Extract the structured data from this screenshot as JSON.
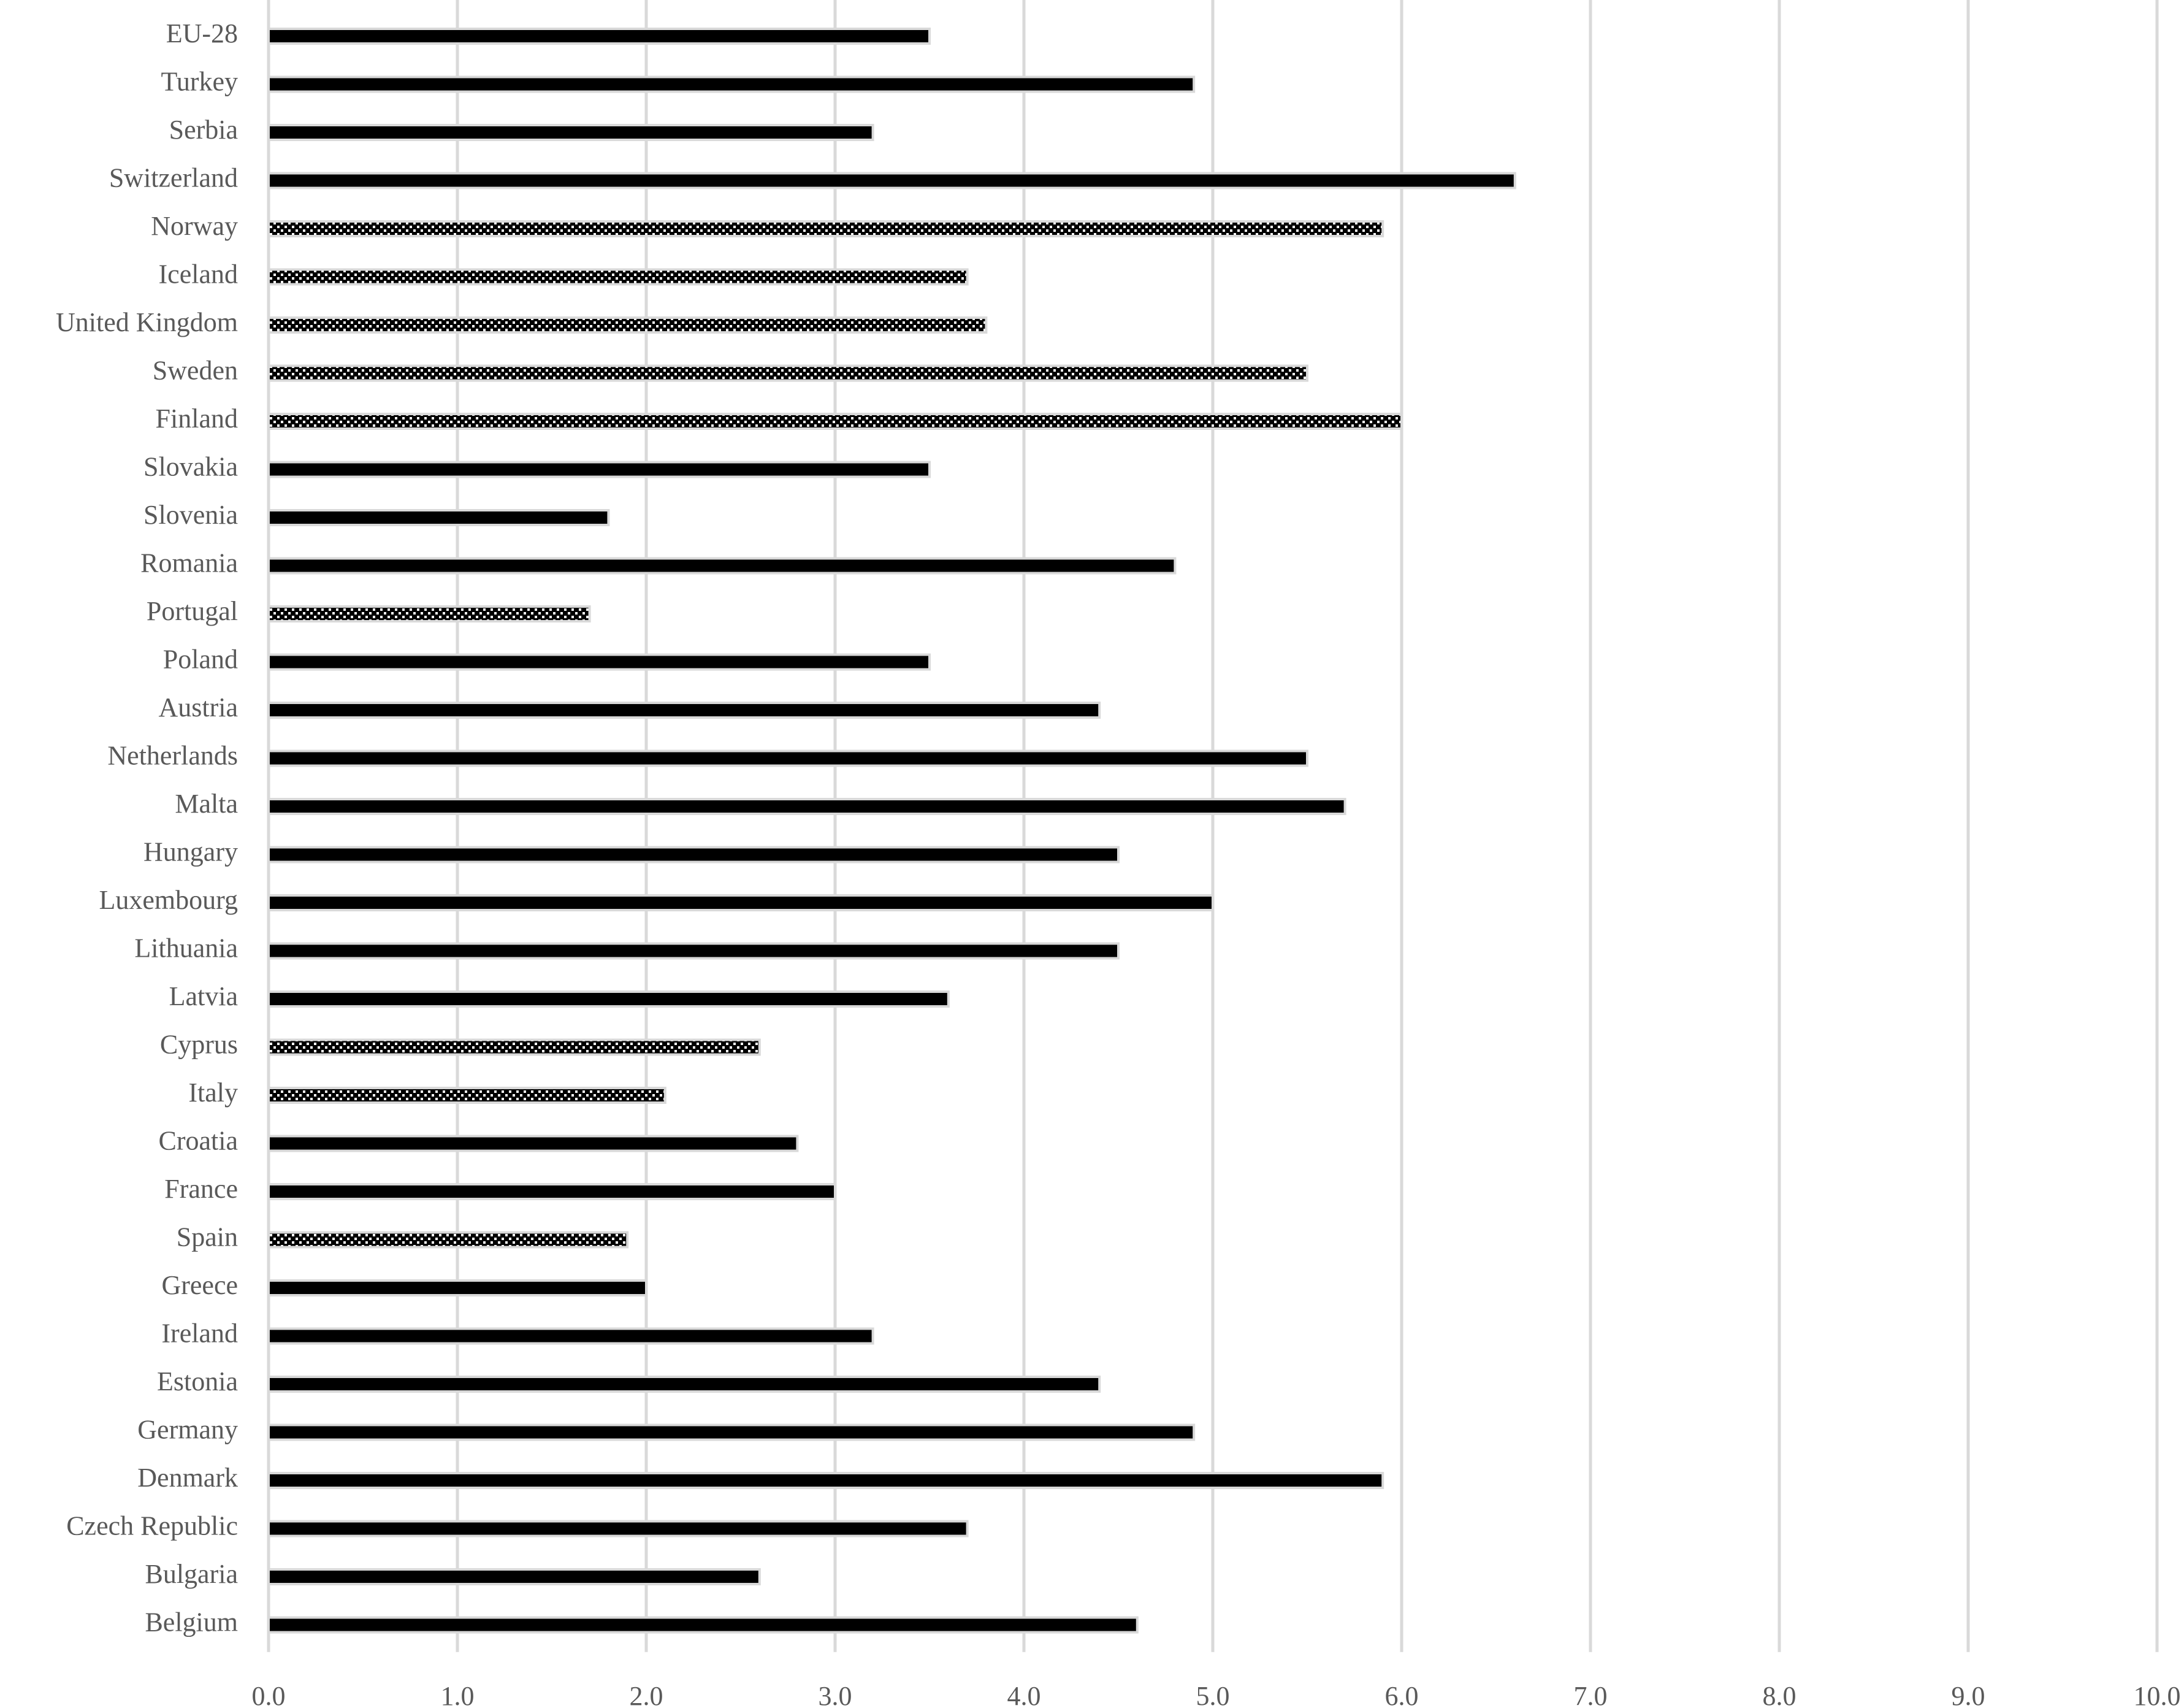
{
  "chart_data": {
    "type": "bar",
    "orientation": "horizontal",
    "categories": [
      "Belgium",
      "Bulgaria",
      "Czech Republic",
      "Denmark",
      "Germany",
      "Estonia",
      "Ireland",
      "Greece",
      "Spain",
      "France",
      "Croatia",
      "Italy",
      "Cyprus",
      "Latvia",
      "Lithuania",
      "Luxembourg",
      "Hungary",
      "Malta",
      "Netherlands",
      "Austria",
      "Poland",
      "Portugal",
      "Romania",
      "Slovenia",
      "Slovakia",
      "Finland",
      "Sweden",
      "United Kingdom",
      "Iceland",
      "Norway",
      "Switzerland",
      "Serbia",
      "Turkey",
      "EU-28"
    ],
    "values": [
      4.6,
      2.6,
      3.7,
      5.9,
      4.9,
      4.4,
      3.2,
      2.0,
      1.9,
      3.0,
      2.8,
      2.1,
      2.6,
      3.6,
      4.5,
      5.0,
      4.5,
      5.7,
      5.5,
      4.4,
      3.5,
      1.7,
      4.8,
      1.8,
      3.5,
      6.0,
      5.5,
      3.8,
      3.7,
      5.9,
      6.6,
      3.2,
      4.9,
      3.5
    ],
    "fills": [
      "solid",
      "solid",
      "solid",
      "solid",
      "solid",
      "solid",
      "solid",
      "solid",
      "checkered",
      "solid",
      "solid",
      "checkered",
      "checkered",
      "solid",
      "solid",
      "solid",
      "solid",
      "solid",
      "solid",
      "solid",
      "solid",
      "checkered",
      "solid",
      "solid",
      "solid",
      "checkered",
      "checkered",
      "checkered",
      "checkered",
      "checkered",
      "solid",
      "solid",
      "solid",
      "solid"
    ],
    "color": "#000000",
    "xlim": [
      0,
      10
    ],
    "xticks": [
      {
        "value": 0,
        "label": "0.0"
      },
      {
        "value": 1,
        "label": "1.0"
      },
      {
        "value": 2,
        "label": "2.0"
      },
      {
        "value": 3,
        "label": "3.0"
      },
      {
        "value": 4,
        "label": "4.0"
      },
      {
        "value": 5,
        "label": "5.0"
      },
      {
        "value": 6,
        "label": "6.0"
      },
      {
        "value": 7,
        "label": "7.0"
      },
      {
        "value": 8,
        "label": "8.0"
      },
      {
        "value": 9,
        "label": "9.0"
      },
      {
        "value": 10,
        "label": "10.0"
      }
    ],
    "grid": true
  }
}
